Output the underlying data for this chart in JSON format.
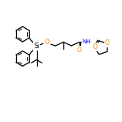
{
  "bg_color": "#ffffff",
  "bond_color": "#000000",
  "O_color": "#ff8800",
  "N_color": "#0000ff",
  "figsize": [
    1.52,
    1.52
  ],
  "dpi": 100,
  "xlim": [
    0,
    10
  ],
  "ylim": [
    0,
    10
  ]
}
